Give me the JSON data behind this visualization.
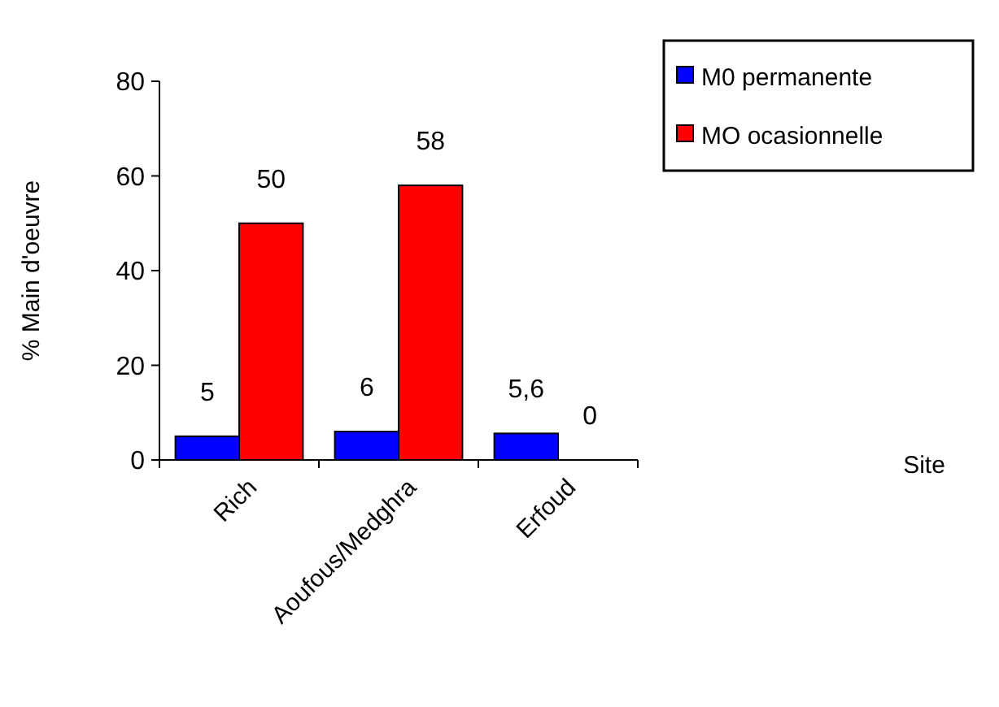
{
  "chart_data": {
    "type": "bar",
    "annotations": [
      "Site"
    ],
    "ylabel": "% Main d'oeuvre",
    "categories": [
      "Rich",
      "Aoufous/Medghra",
      "Erfoud"
    ],
    "series": [
      {
        "name": "M0 permanente",
        "color": "#0000ff",
        "values": [
          5,
          6,
          5.6
        ],
        "value_labels": [
          "5",
          "6",
          "5,6"
        ]
      },
      {
        "name": "MO ocasionnelle",
        "color": "#ff0000",
        "values": [
          50,
          58,
          0
        ],
        "value_labels": [
          "50",
          "58",
          "0"
        ]
      }
    ],
    "ylim": [
      0,
      80
    ],
    "yticks": [
      0,
      20,
      40,
      60,
      80
    ],
    "grid": false,
    "legend": "top right"
  }
}
